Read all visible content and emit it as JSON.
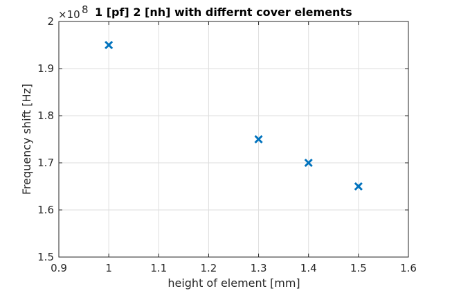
{
  "chart_data": {
    "type": "scatter",
    "title": "1 [pf] 2 [nh] with differnt cover elements",
    "xlabel": "height of element [mm]",
    "ylabel": "Frequency shift [Hz]",
    "xlim": [
      0.9,
      1.6
    ],
    "ylim": [
      150000000,
      200000000
    ],
    "x_ticks": [
      0.9,
      1.0,
      1.1,
      1.2,
      1.3,
      1.4,
      1.5,
      1.6
    ],
    "x_tick_labels": [
      "0.9",
      "1",
      "1.1",
      "1.2",
      "1.3",
      "1.4",
      "1.5",
      "1.6"
    ],
    "y_ticks": [
      150000000,
      160000000,
      170000000,
      180000000,
      190000000,
      200000000
    ],
    "y_tick_labels": [
      "1.5",
      "1.6",
      "1.7",
      "1.8",
      "1.9",
      "2"
    ],
    "y_exponent_prefix": "×10",
    "y_exponent_power": "8",
    "grid": true,
    "marker": "x",
    "series": [
      {
        "x": [
          1.0,
          1.3,
          1.4,
          1.5
        ],
        "y": [
          195000000,
          175000000,
          170000000,
          165000000
        ],
        "color": "#0072BD"
      }
    ]
  }
}
